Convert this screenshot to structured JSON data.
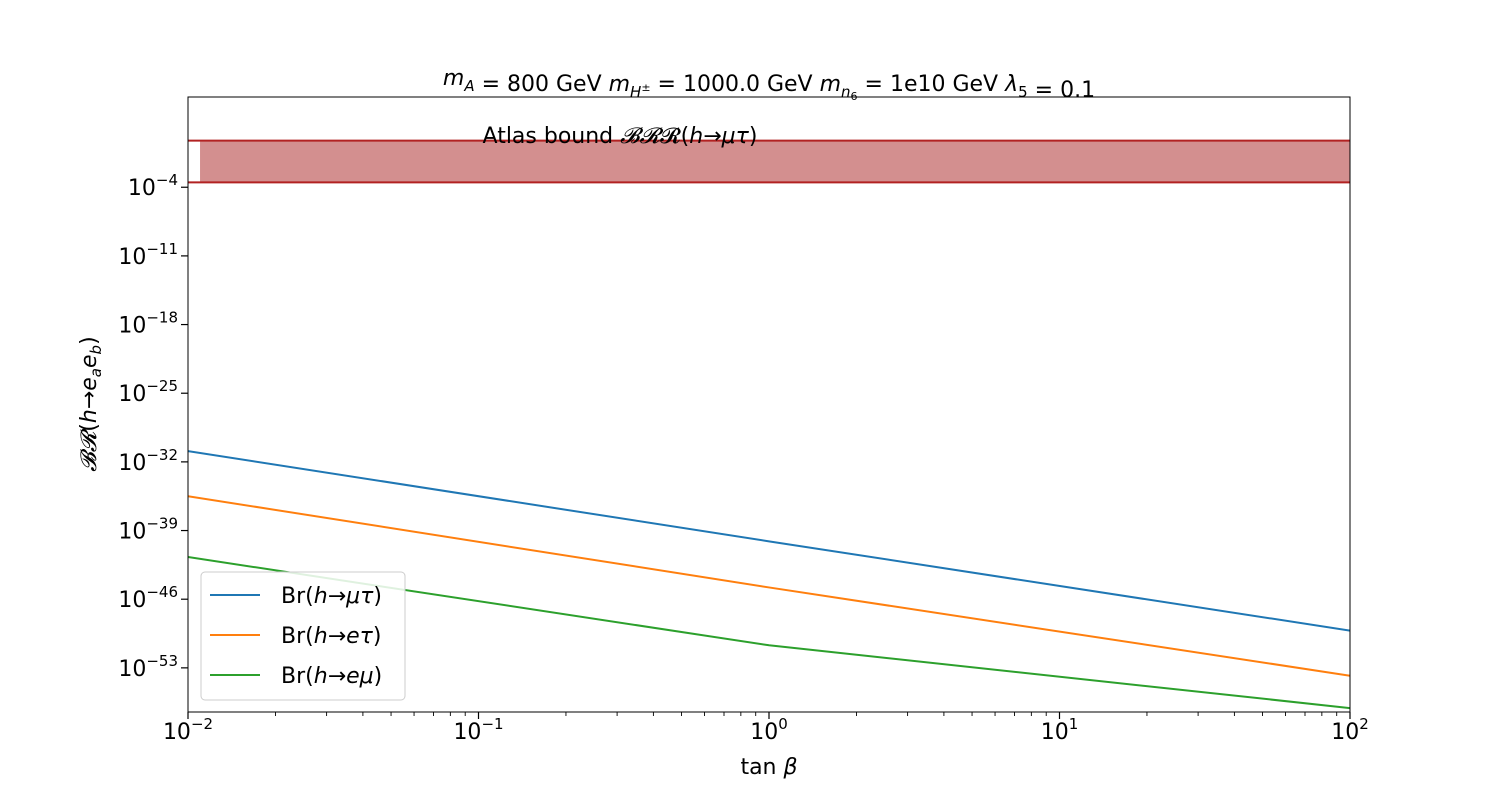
{
  "chart_data": {
    "type": "line",
    "title": {
      "parts": [
        {
          "t": "m",
          "style": "math"
        },
        {
          "t": "A",
          "style": "sub"
        },
        {
          "t": " = 800 GeV ",
          "style": "normal"
        },
        {
          "t": "m",
          "style": "math"
        },
        {
          "t": "H±",
          "style": "sub"
        },
        {
          "t": " = 1000.0 GeV ",
          "style": "normal"
        },
        {
          "t": "m",
          "style": "math"
        },
        {
          "t": "n6",
          "style": "sub"
        },
        {
          "t": " = 1e10 GeV ",
          "style": "normal"
        },
        {
          "t": "λ",
          "style": "math"
        },
        {
          "t": "5",
          "style": "sub"
        },
        {
          "t": " = 0.1",
          "style": "normal"
        }
      ]
    },
    "xlabel": "tan β",
    "ylabel": "𝓑𝓡(h→eₐe_b)",
    "xscale": "log",
    "yscale": "log",
    "xlim": [
      0.01,
      100
    ],
    "ylim_log10": [
      -57.5,
      5.2
    ],
    "xticks": [
      {
        "base": "10",
        "exp": "−2",
        "value": 0.01
      },
      {
        "base": "10",
        "exp": "−1",
        "value": 0.1
      },
      {
        "base": "10",
        "exp": "0",
        "value": 1
      },
      {
        "base": "10",
        "exp": "1",
        "value": 10
      },
      {
        "base": "10",
        "exp": "2",
        "value": 100
      }
    ],
    "yticks": [
      {
        "base": "10",
        "exp": "−4",
        "log10": -4
      },
      {
        "base": "10",
        "exp": "−11",
        "log10": -11
      },
      {
        "base": "10",
        "exp": "−18",
        "log10": -18
      },
      {
        "base": "10",
        "exp": "−25",
        "log10": -25
      },
      {
        "base": "10",
        "exp": "−32",
        "log10": -32
      },
      {
        "base": "10",
        "exp": "−39",
        "log10": -39
      },
      {
        "base": "10",
        "exp": "−46",
        "log10": -46
      },
      {
        "base": "10",
        "exp": "−53",
        "log10": -53
      }
    ],
    "bound_band": {
      "label": "Atlas bound 𝓑𝓡(h→μτ)",
      "x_range": [
        0.011,
        100
      ],
      "log10_range": [
        -3.5,
        0.75
      ],
      "fill": "#c06060",
      "edge": "#b22222"
    },
    "series": [
      {
        "name": "Br(h→μτ)",
        "color": "#1f77b4",
        "x": [
          0.01,
          1,
          100
        ],
        "log10_y": [
          -30.9,
          -40.1,
          -49.2
        ]
      },
      {
        "name": "Br(h→eτ)",
        "color": "#ff7f0e",
        "x": [
          0.01,
          1,
          100
        ],
        "log10_y": [
          -35.5,
          -44.8,
          -53.8
        ]
      },
      {
        "name": "Br(h→eμ)",
        "color": "#2ca02c",
        "x": [
          0.01,
          1,
          100
        ],
        "log10_y": [
          -41.7,
          -50.7,
          -57.1
        ]
      }
    ],
    "legend_placement": "lower-left",
    "grid": false
  }
}
